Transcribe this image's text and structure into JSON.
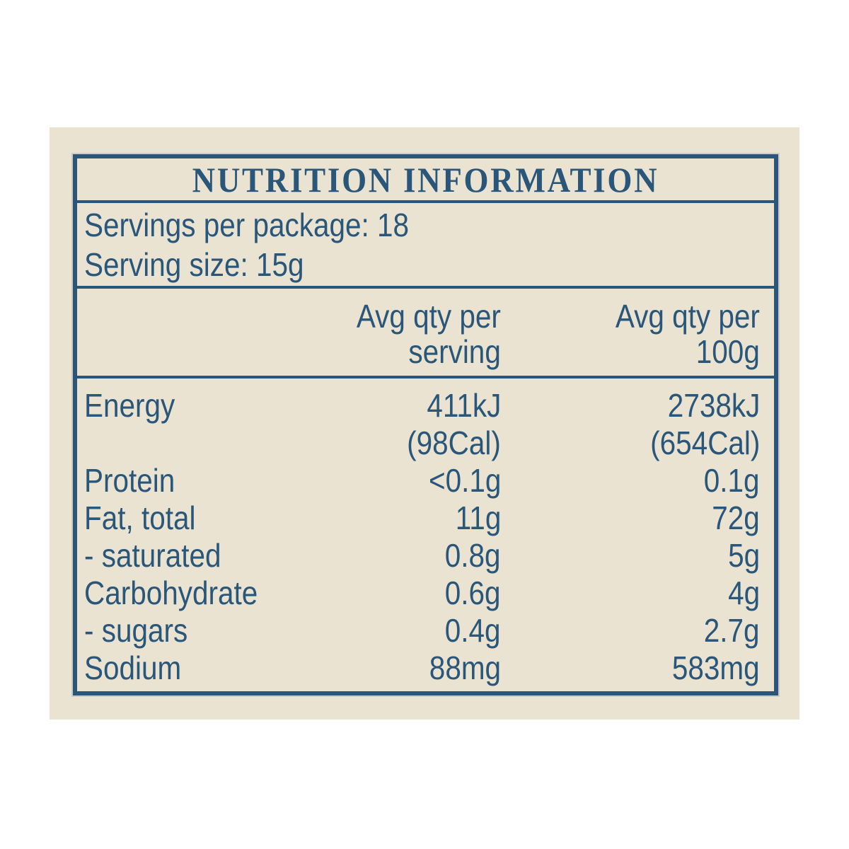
{
  "label": {
    "title": "NUTRITION INFORMATION",
    "servings_per_package": "Servings per package: 18",
    "serving_size": "Serving size: 15g",
    "columns": {
      "per_serving": {
        "line1": "Avg qty per",
        "line2": "serving"
      },
      "per_100g": {
        "line1": "Avg qty per",
        "line2": "100g"
      }
    },
    "rows": [
      {
        "name": "Energy",
        "per_serving": "411kJ",
        "per_100g": "2738kJ"
      },
      {
        "name": "",
        "per_serving": "(98Cal)",
        "per_100g": "(654Cal)"
      },
      {
        "name": "Protein",
        "per_serving": "<0.1g",
        "per_100g": "0.1g"
      },
      {
        "name": "Fat, total",
        "per_serving": "11g",
        "per_100g": "72g"
      },
      {
        "name": "- saturated",
        "per_serving": "0.8g",
        "per_100g": "5g"
      },
      {
        "name": "Carbohydrate",
        "per_serving": "0.6g",
        "per_100g": "4g"
      },
      {
        "name": "- sugars",
        "per_serving": "0.4g",
        "per_100g": "2.7g"
      },
      {
        "name": "Sodium",
        "per_serving": "88mg",
        "per_100g": "583mg"
      }
    ],
    "colors": {
      "text_blue": "#295679",
      "border_blue": "#295679",
      "panel_cream": "#EAE3D1",
      "page_white": "#FFFFFF"
    }
  }
}
